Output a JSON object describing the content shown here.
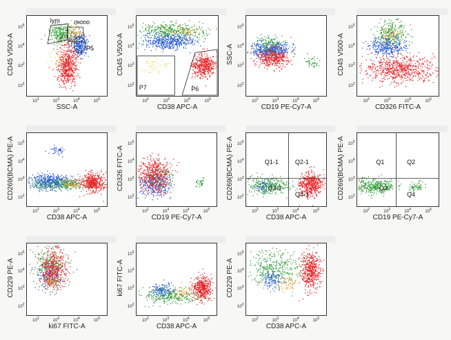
{
  "watermark": "",
  "colors": {
    "red": "#e8262a",
    "blue": "#2356d8",
    "green": "#33a03a",
    "orange": "#e69320",
    "yellow": "#e8d84a",
    "gray": "#888888"
  },
  "chart_data": [
    {
      "id": "p1",
      "type": "scatter",
      "xlabel": "SSC-A",
      "ylabel": "CD45 V500-A",
      "gates": [
        "lym",
        "mono",
        "P5"
      ],
      "series": [
        {
          "name": "",
          "color": "green"
        },
        {
          "name": "",
          "color": "blue"
        },
        {
          "name": "",
          "color": "red"
        },
        {
          "name": "",
          "color": "orange"
        }
      ]
    },
    {
      "id": "p2",
      "type": "scatter",
      "xlabel": "CD38 APC-A",
      "ylabel": "CD45 V500-A",
      "gates": [
        "P7",
        "P6"
      ],
      "series": [
        {
          "color": "green"
        },
        {
          "color": "blue"
        },
        {
          "color": "red"
        },
        {
          "color": "yellow"
        }
      ]
    },
    {
      "id": "p3",
      "type": "scatter",
      "xlabel": "CD19 PE-Cy7-A",
      "ylabel": "SSC-A",
      "gates": [],
      "series": [
        {
          "color": "blue"
        },
        {
          "color": "red"
        },
        {
          "color": "green"
        }
      ]
    },
    {
      "id": "p4",
      "type": "scatter",
      "xlabel": "CD326 FITC-A",
      "ylabel": "CD45 V500-A",
      "gates": [],
      "series": [
        {
          "color": "green"
        },
        {
          "color": "blue"
        },
        {
          "color": "red"
        }
      ]
    },
    {
      "id": "p5",
      "type": "scatter",
      "xlabel": "CD38 APC-A",
      "ylabel": "CD269(BCMA) PE-A",
      "gates": [],
      "series": [
        {
          "color": "blue"
        },
        {
          "color": "green"
        },
        {
          "color": "red"
        }
      ]
    },
    {
      "id": "p6",
      "type": "scatter",
      "xlabel": "CD19 PE-Cy7-A",
      "ylabel": "CD326 FITC-A",
      "gates": [],
      "series": [
        {
          "color": "blue"
        },
        {
          "color": "red"
        },
        {
          "color": "green"
        }
      ]
    },
    {
      "id": "p7",
      "type": "scatter",
      "xlabel": "CD38 APC-A",
      "ylabel": "CD269(BCMA) PE-A",
      "gates": [
        "Q1-1",
        "Q2-1",
        "Q3-1",
        "Q4-1"
      ],
      "series": [
        {
          "color": "green"
        },
        {
          "color": "blue"
        },
        {
          "color": "red"
        }
      ]
    },
    {
      "id": "p8",
      "type": "scatter",
      "xlabel": "CD19 PE-Cy7-A",
      "ylabel": "CD269(BCMA) PE-A",
      "gates": [
        "Q1",
        "Q2",
        "Q3",
        "Q4"
      ],
      "series": [
        {
          "color": "green"
        }
      ]
    },
    {
      "id": "p9",
      "type": "scatter",
      "xlabel": "ki67 FITC-A",
      "ylabel": "CD229 PE-A",
      "gates": [],
      "series": [
        {
          "color": "green"
        },
        {
          "color": "blue"
        },
        {
          "color": "red"
        }
      ]
    },
    {
      "id": "p10",
      "type": "scatter",
      "xlabel": "CD38 APC-A",
      "ylabel": "ki67 FITC-A",
      "gates": [],
      "series": [
        {
          "color": "blue"
        },
        {
          "color": "green"
        },
        {
          "color": "red"
        }
      ]
    },
    {
      "id": "p11",
      "type": "scatter",
      "xlabel": "CD38 APC-A",
      "ylabel": "CD229 PE-A",
      "gates": [],
      "series": [
        {
          "color": "green"
        },
        {
          "color": "blue"
        },
        {
          "color": "red"
        }
      ]
    }
  ],
  "axis_ticks": {
    "x": [
      "10",
      "10",
      "10",
      "10",
      "10"
    ],
    "x_exp": [
      "2",
      "3",
      "4",
      "5"
    ],
    "y": [
      "10",
      "10",
      "10",
      "10"
    ],
    "y_exp": [
      "2",
      "3",
      "4",
      "5"
    ]
  }
}
